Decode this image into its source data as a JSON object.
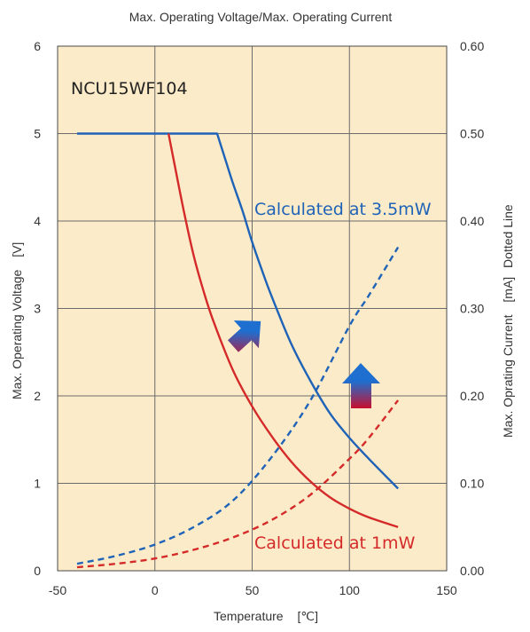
{
  "chart_data": {
    "type": "line",
    "title": "Max. Operating Voltage/Max. Operating Current",
    "model_label": "NCU15WF104",
    "xlabel": "Temperature",
    "xunit": "[℃]",
    "ylabel_left": "Max. Operating Voltage",
    "ylabel_left_unit": "[V]",
    "ylabel_right": "Max. Oprating Current",
    "ylabel_right_unit": "[mA]",
    "ylabel_right_suffix": "Dotted Line",
    "xlim": [
      -50,
      150
    ],
    "ylim_left": [
      0,
      6
    ],
    "ylim_right": [
      0,
      0.6
    ],
    "x_ticks": [
      "-50",
      "0",
      "50",
      "100",
      "150"
    ],
    "y_left_ticks": [
      "0",
      "1",
      "2",
      "3",
      "4",
      "5",
      "6"
    ],
    "y_right_ticks": [
      "0.00",
      "0.10",
      "0.20",
      "0.30",
      "0.40",
      "0.50",
      "0.60"
    ],
    "grid": true,
    "background_color": "#fcebc8",
    "annotations": {
      "blue": "Calculated at 3.5mW",
      "red": "Calculated at 1mW"
    },
    "series": [
      {
        "name": "Calculated at 3.5mW",
        "axis": "left",
        "style": "solid",
        "color": "#1f63b8",
        "x": [
          -40,
          -20,
          0,
          20,
          32,
          36,
          40,
          45,
          50,
          55,
          60,
          70,
          80,
          90,
          100,
          110,
          125
        ],
        "y": [
          5.0,
          5.0,
          5.0,
          5.0,
          5.0,
          4.72,
          4.44,
          4.12,
          3.76,
          3.44,
          3.14,
          2.6,
          2.17,
          1.8,
          1.52,
          1.28,
          0.94
        ]
      },
      {
        "name": "Calculated at 1mW",
        "axis": "left",
        "style": "solid",
        "color": "#d42a2a",
        "x": [
          7,
          10,
          15,
          20,
          25,
          30,
          40,
          50,
          60,
          70,
          80,
          90,
          100,
          110,
          125
        ],
        "y": [
          5.0,
          4.66,
          4.1,
          3.6,
          3.2,
          2.86,
          2.3,
          1.88,
          1.54,
          1.25,
          1.02,
          0.84,
          0.71,
          0.61,
          0.5
        ]
      },
      {
        "name": "Calculated at 3.5mW",
        "axis": "right",
        "style": "dashed",
        "color": "#1f63b8",
        "x": [
          -40,
          -20,
          0,
          20,
          40,
          60,
          80,
          100,
          110,
          125
        ],
        "y": [
          0.008,
          0.017,
          0.03,
          0.05,
          0.08,
          0.13,
          0.195,
          0.28,
          0.315,
          0.37
        ]
      },
      {
        "name": "Calculated at 1mW",
        "axis": "right",
        "style": "dashed",
        "color": "#d42a2a",
        "x": [
          -40,
          -20,
          0,
          20,
          40,
          60,
          80,
          100,
          110,
          125
        ],
        "y": [
          0.004,
          0.008,
          0.014,
          0.024,
          0.038,
          0.058,
          0.087,
          0.128,
          0.152,
          0.195
        ]
      }
    ]
  }
}
